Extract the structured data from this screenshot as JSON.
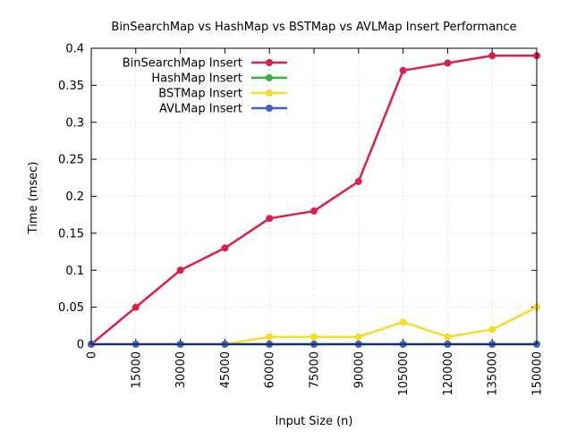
{
  "chart_data": {
    "type": "line",
    "title": "BinSearchMap vs HashMap vs BSTMap vs AVLMap Insert Performance",
    "xlabel": "Input Size (n)",
    "ylabel": "Time (msec)",
    "x": [
      0,
      15000,
      30000,
      45000,
      60000,
      75000,
      90000,
      105000,
      120000,
      135000,
      150000
    ],
    "x_tick_labels": [
      "0",
      "15000",
      "30000",
      "45000",
      "60000",
      "75000",
      "90000",
      "105000",
      "120000",
      "135000",
      "150000"
    ],
    "xlim": [
      0,
      150000
    ],
    "ylim": [
      0,
      0.4
    ],
    "y_ticks": [
      0,
      0.05,
      0.1,
      0.15,
      0.2,
      0.25,
      0.3,
      0.35,
      0.4
    ],
    "y_tick_labels": [
      "0",
      "0.05",
      "0.1",
      "0.15",
      "0.2",
      "0.25",
      "0.3",
      "0.35",
      "0.4"
    ],
    "grid": true,
    "legend_position": "top-left",
    "series": [
      {
        "name": "BinSearchMap Insert",
        "color": "#dc1e4a",
        "values": [
          0,
          0.05,
          0.1,
          0.13,
          0.17,
          0.18,
          0.22,
          0.37,
          0.38,
          0.39,
          0.39
        ]
      },
      {
        "name": "HashMap Insert",
        "color": "#3cb043",
        "values": [
          0,
          0,
          0,
          0,
          0,
          0,
          0,
          0,
          0,
          0,
          0
        ]
      },
      {
        "name": "BSTMap Insert",
        "color": "#f5dc28",
        "values": [
          0,
          0,
          0,
          0,
          0.01,
          0.01,
          0.01,
          0.03,
          0.01,
          0.02,
          0.05
        ]
      },
      {
        "name": "AVLMap Insert",
        "color": "#4060c8",
        "values": [
          0,
          0,
          0,
          0,
          0,
          0,
          0,
          0,
          0,
          0,
          0
        ]
      }
    ]
  }
}
